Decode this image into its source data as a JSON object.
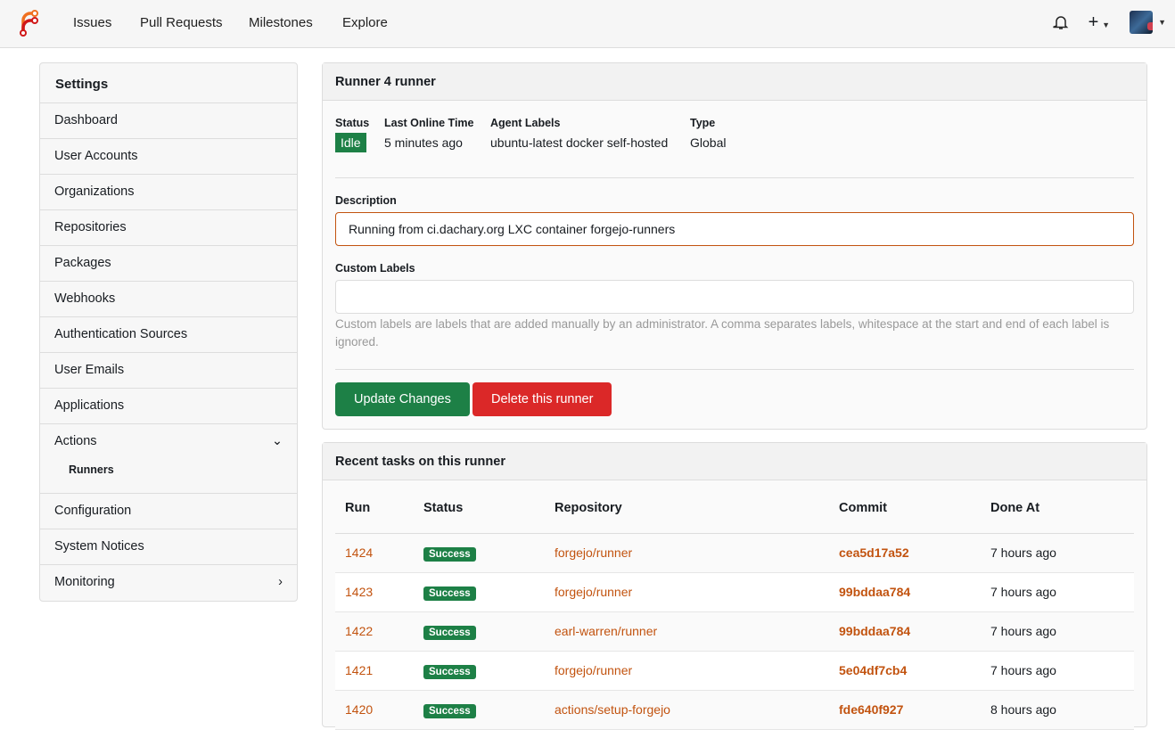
{
  "nav": {
    "items": [
      "Issues",
      "Pull Requests",
      "Milestones",
      "Explore"
    ]
  },
  "sidebar": {
    "title": "Settings",
    "items": [
      {
        "label": "Dashboard"
      },
      {
        "label": "User Accounts"
      },
      {
        "label": "Organizations"
      },
      {
        "label": "Repositories"
      },
      {
        "label": "Packages"
      },
      {
        "label": "Webhooks"
      },
      {
        "label": "Authentication Sources"
      },
      {
        "label": "User Emails"
      },
      {
        "label": "Applications"
      },
      {
        "label": "Actions",
        "sub": "Runners"
      },
      {
        "label": "Configuration"
      },
      {
        "label": "System Notices"
      },
      {
        "label": "Monitoring"
      }
    ]
  },
  "runner": {
    "title": "Runner 4 runner",
    "status_label": "Status",
    "status": "Idle",
    "last_online_label": "Last Online Time",
    "last_online": "5 minutes ago",
    "agent_labels_label": "Agent Labels",
    "agent_labels": "ubuntu-latest docker self-hosted",
    "type_label": "Type",
    "type": "Global",
    "description_label": "Description",
    "description": "Running from ci.dachary.org LXC container forgejo-runners",
    "custom_labels_label": "Custom Labels",
    "custom_labels": "",
    "help": "Custom labels are labels that are added manually by an administrator. A comma separates labels, whitespace at the start and end of each label is ignored.",
    "update": "Update Changes",
    "delete": "Delete this runner"
  },
  "tasks": {
    "title": "Recent tasks on this runner",
    "columns": [
      "Run",
      "Status",
      "Repository",
      "Commit",
      "Done At"
    ],
    "rows": [
      {
        "run": "1424",
        "status": "Success",
        "repo": "forgejo/runner",
        "commit": "cea5d17a52",
        "done": "7 hours ago"
      },
      {
        "run": "1423",
        "status": "Success",
        "repo": "forgejo/runner",
        "commit": "99bddaa784",
        "done": "7 hours ago"
      },
      {
        "run": "1422",
        "status": "Success",
        "repo": "earl-warren/runner",
        "commit": "99bddaa784",
        "done": "7 hours ago"
      },
      {
        "run": "1421",
        "status": "Success",
        "repo": "forgejo/runner",
        "commit": "5e04df7cb4",
        "done": "7 hours ago"
      },
      {
        "run": "1420",
        "status": "Success",
        "repo": "actions/setup-forgejo",
        "commit": "fde640f927",
        "done": "8 hours ago"
      }
    ]
  },
  "colors": {
    "accent": "#c2530f",
    "success": "#1d8046",
    "danger": "#db2828"
  }
}
